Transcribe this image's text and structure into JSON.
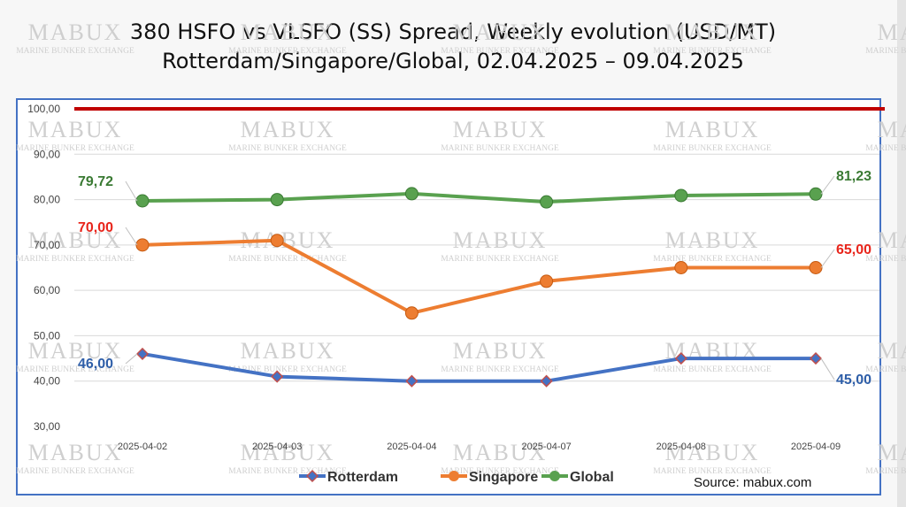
{
  "title_line1": "380 HSFO vs VLSFO (SS) Spread, Weekly evolution (USD/MT)",
  "title_line2": "Rotterdam/Singapore/Global, 02.04.2025 – 09.04.2025",
  "source": "Source: mabux.com",
  "watermark": {
    "brand": "MABUX",
    "tagline": "MARINE BUNKER EXCHANGE"
  },
  "colors": {
    "Rotterdam": "#4472c4",
    "Singapore": "#ed7d31",
    "Global": "#59a14f",
    "reference": "#c00000"
  },
  "chart_data": {
    "type": "line",
    "x": [
      "2025-04-02",
      "2025-04-03",
      "2025-04-04",
      "2025-04-07",
      "2025-04-08",
      "2025-04-09"
    ],
    "ylim": [
      30,
      100
    ],
    "yticks": [
      "30,00",
      "40,00",
      "50,00",
      "60,00",
      "70,00",
      "80,00",
      "90,00",
      "100,00"
    ],
    "reference_line": 100,
    "grid": true,
    "legend_position": "bottom",
    "series": [
      {
        "name": "Rotterdam",
        "marker": "diamond",
        "values": [
          46.0,
          41.0,
          40.0,
          40.0,
          45.0,
          45.0
        ],
        "first_label": "46,00",
        "last_label": "45,00"
      },
      {
        "name": "Singapore",
        "marker": "circle",
        "values": [
          70.0,
          71.0,
          55.0,
          62.0,
          65.0,
          65.0
        ],
        "first_label": "70,00",
        "last_label": "65,00"
      },
      {
        "name": "Global",
        "marker": "circle",
        "values": [
          79.72,
          80.0,
          81.3,
          79.5,
          80.9,
          81.23
        ],
        "first_label": "79,72",
        "last_label": "81,23"
      }
    ]
  }
}
